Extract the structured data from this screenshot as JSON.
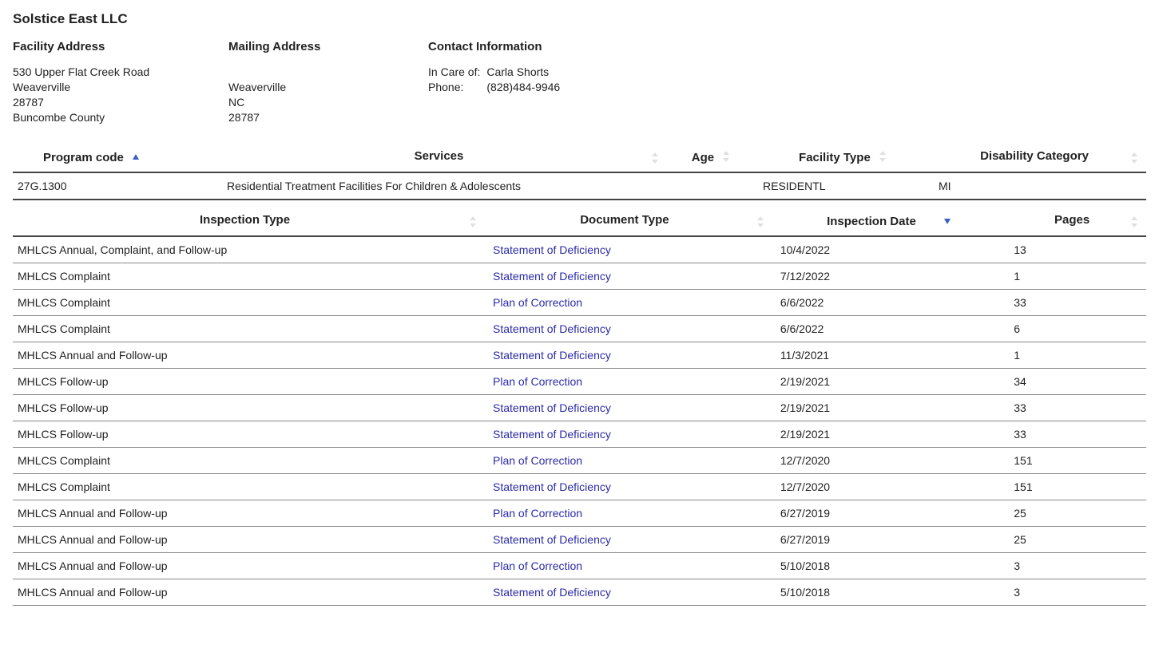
{
  "facility": {
    "name": "Solstice East LLC",
    "address_heading": "Facility Address",
    "address_lines": [
      "530 Upper Flat Creek Road",
      "Weaverville",
      "28787",
      "Buncombe County"
    ],
    "mailing_heading": "Mailing Address",
    "mailing_lines": [
      "Weaverville",
      "NC",
      "28787"
    ],
    "contact_heading": "Contact Information",
    "contact_care_label": "In Care of:",
    "contact_care_value": "Carla Shorts",
    "contact_phone_label": "Phone:",
    "contact_phone_value": "(828)484-9946"
  },
  "programs_table": {
    "columns": [
      {
        "label": "Program code",
        "sort": "asc"
      },
      {
        "label": "Services",
        "sort": "both"
      },
      {
        "label": "Age",
        "sort": "both"
      },
      {
        "label": "Facility Type",
        "sort": "both"
      },
      {
        "label": "Disability Category",
        "sort": "both"
      }
    ],
    "rows": [
      {
        "program_code": "27G.1300",
        "services": "Residential Treatment Facilities For Children & Adolescents",
        "age": "",
        "facility_type": "RESIDENTL",
        "disability_category": "MI"
      }
    ]
  },
  "inspections_table": {
    "columns": [
      {
        "label": "Inspection Type",
        "sort": "both"
      },
      {
        "label": "Document Type",
        "sort": "both"
      },
      {
        "label": "Inspection Date",
        "sort": "desc"
      },
      {
        "label": "Pages",
        "sort": "both"
      }
    ],
    "rows": [
      {
        "inspection_type": "MHLCS Annual, Complaint, and Follow-up",
        "document_type": "Statement of Deficiency",
        "inspection_date": "10/4/2022",
        "pages": "13"
      },
      {
        "inspection_type": "MHLCS Complaint",
        "document_type": "Statement of Deficiency",
        "inspection_date": "7/12/2022",
        "pages": "1"
      },
      {
        "inspection_type": "MHLCS Complaint",
        "document_type": "Plan of Correction",
        "inspection_date": "6/6/2022",
        "pages": "33"
      },
      {
        "inspection_type": "MHLCS Complaint",
        "document_type": "Statement of Deficiency",
        "inspection_date": "6/6/2022",
        "pages": "6"
      },
      {
        "inspection_type": "MHLCS Annual and Follow-up",
        "document_type": "Statement of Deficiency",
        "inspection_date": "11/3/2021",
        "pages": "1"
      },
      {
        "inspection_type": "MHLCS Follow-up",
        "document_type": "Plan of Correction",
        "inspection_date": "2/19/2021",
        "pages": "34"
      },
      {
        "inspection_type": "MHLCS Follow-up",
        "document_type": "Statement of Deficiency",
        "inspection_date": "2/19/2021",
        "pages": "33"
      },
      {
        "inspection_type": "MHLCS Follow-up",
        "document_type": "Statement of Deficiency",
        "inspection_date": "2/19/2021",
        "pages": "33"
      },
      {
        "inspection_type": "MHLCS Complaint",
        "document_type": "Plan of Correction",
        "inspection_date": "12/7/2020",
        "pages": "151"
      },
      {
        "inspection_type": "MHLCS Complaint",
        "document_type": "Statement of Deficiency",
        "inspection_date": "12/7/2020",
        "pages": "151"
      },
      {
        "inspection_type": "MHLCS Annual and Follow-up",
        "document_type": "Plan of Correction",
        "inspection_date": "6/27/2019",
        "pages": "25"
      },
      {
        "inspection_type": "MHLCS Annual and Follow-up",
        "document_type": "Statement of Deficiency",
        "inspection_date": "6/27/2019",
        "pages": "25"
      },
      {
        "inspection_type": "MHLCS Annual and Follow-up",
        "document_type": "Plan of Correction",
        "inspection_date": "5/10/2018",
        "pages": "3"
      },
      {
        "inspection_type": "MHLCS Annual and Follow-up",
        "document_type": "Statement of Deficiency",
        "inspection_date": "5/10/2018",
        "pages": "3"
      }
    ]
  },
  "colors": {
    "link": "#2a2aa8",
    "border_heavy": "#444444",
    "border_light": "#888888",
    "sort_active": "#3b5fc0",
    "sort_inactive": "#bbbbbb"
  }
}
